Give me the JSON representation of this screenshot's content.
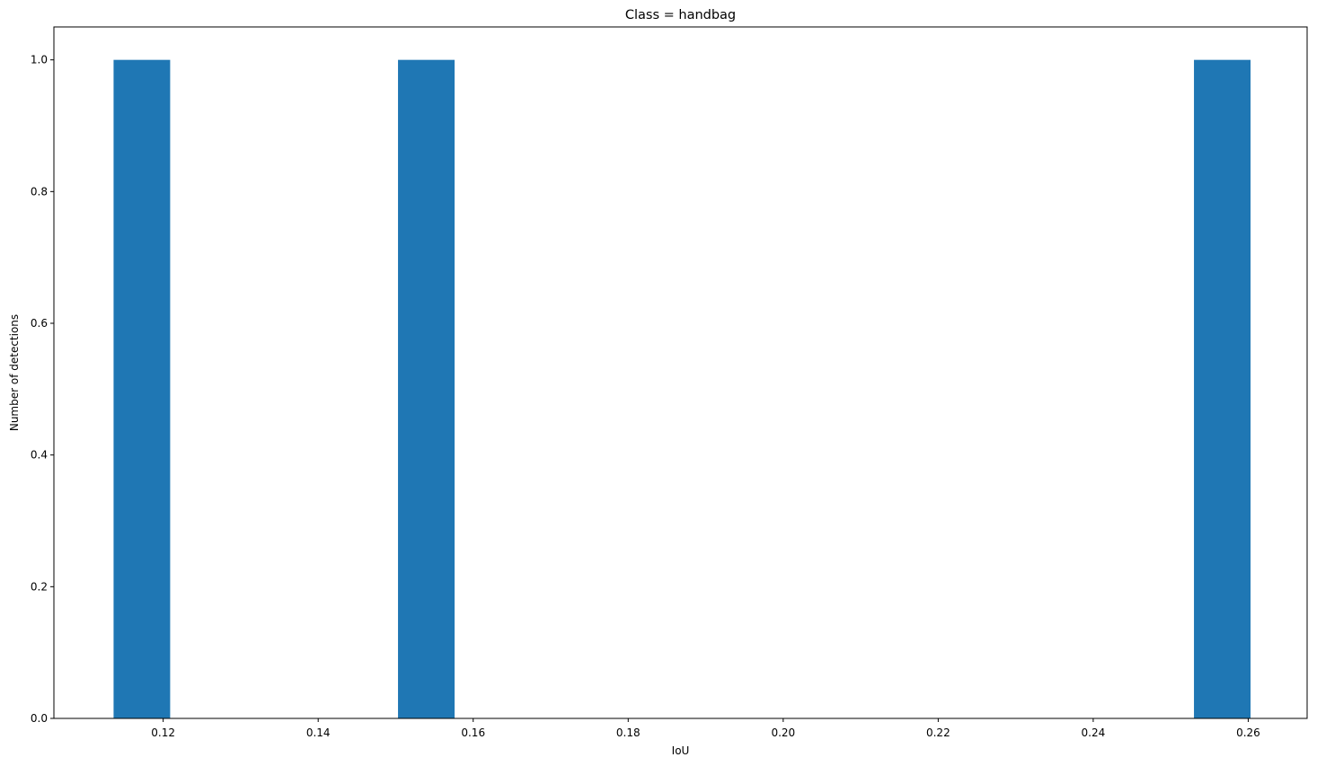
{
  "chart_data": {
    "type": "bar",
    "title": "Class = handbag",
    "xlabel": "IoU",
    "ylabel": "Number of detections",
    "xlim": [
      0.1059,
      0.2676
    ],
    "ylim": [
      0,
      1.05
    ],
    "bars": [
      {
        "x_start": 0.1136,
        "x_end": 0.1209,
        "value": 1
      },
      {
        "x_start": 0.1503,
        "x_end": 0.1576,
        "value": 1
      },
      {
        "x_start": 0.253,
        "x_end": 0.2603,
        "value": 1
      }
    ],
    "xticks": [
      0.12,
      0.14,
      0.16,
      0.18,
      0.2,
      0.22,
      0.24,
      0.26
    ],
    "xtick_labels": [
      "0.12",
      "0.14",
      "0.16",
      "0.18",
      "0.20",
      "0.22",
      "0.24",
      "0.26"
    ],
    "yticks": [
      0.0,
      0.2,
      0.4,
      0.6,
      0.8,
      1.0
    ],
    "ytick_labels": [
      "0.0",
      "0.2",
      "0.4",
      "0.6",
      "0.8",
      "1.0"
    ],
    "grid": false,
    "legend": "none",
    "colors": {
      "bar": "#1f77b4",
      "axes": "#000000"
    }
  }
}
